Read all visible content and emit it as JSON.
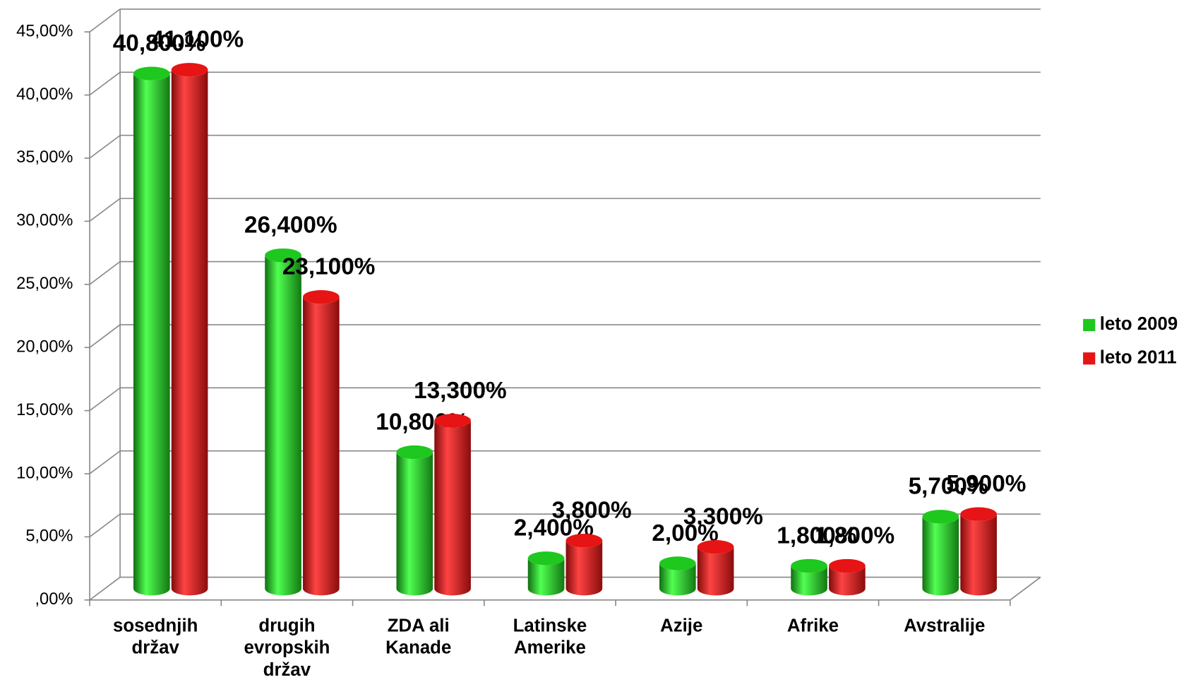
{
  "chart_data": {
    "type": "bar3d",
    "categories": [
      "sosednjih\ndržav",
      "drugih\nevropskih\ndržav",
      "ZDA ali\nKanade",
      "Latinske\nAmerike",
      "Azije",
      "Afrike",
      "Avstralije"
    ],
    "series": [
      {
        "name": "leto 2009",
        "color": "#1ec81e",
        "values": [
          40.8,
          26.4,
          10.8,
          2.4,
          2.0,
          1.8,
          5.7
        ],
        "value_labels": [
          "40,800%",
          "26,400%",
          "10,800%",
          "2,400%",
          "2,00%",
          "1,800%",
          "5,700%"
        ]
      },
      {
        "name": "leto 2011",
        "color": "#e61414",
        "values": [
          41.1,
          23.1,
          13.3,
          3.8,
          3.3,
          1.8,
          5.9
        ],
        "value_labels": [
          "41,100%",
          "23,100%",
          "13,300%",
          "3,800%",
          "3,300%",
          "1,800%",
          "5,900%"
        ]
      }
    ],
    "ylim": [
      0,
      45
    ],
    "yticks": [
      {
        "value": 0,
        "label": ",00%"
      },
      {
        "value": 5,
        "label": "5,00%"
      },
      {
        "value": 10,
        "label": "10,00%"
      },
      {
        "value": 15,
        "label": "15,00%"
      },
      {
        "value": 20,
        "label": "20,00%"
      },
      {
        "value": 25,
        "label": "25,00%"
      },
      {
        "value": 30,
        "label": "30,00%"
      },
      {
        "value": 35,
        "label": "35,00%"
      },
      {
        "value": 40,
        "label": "40,00%"
      },
      {
        "value": 45,
        "label": "45,00%"
      }
    ],
    "grid": true,
    "legend": "right"
  }
}
